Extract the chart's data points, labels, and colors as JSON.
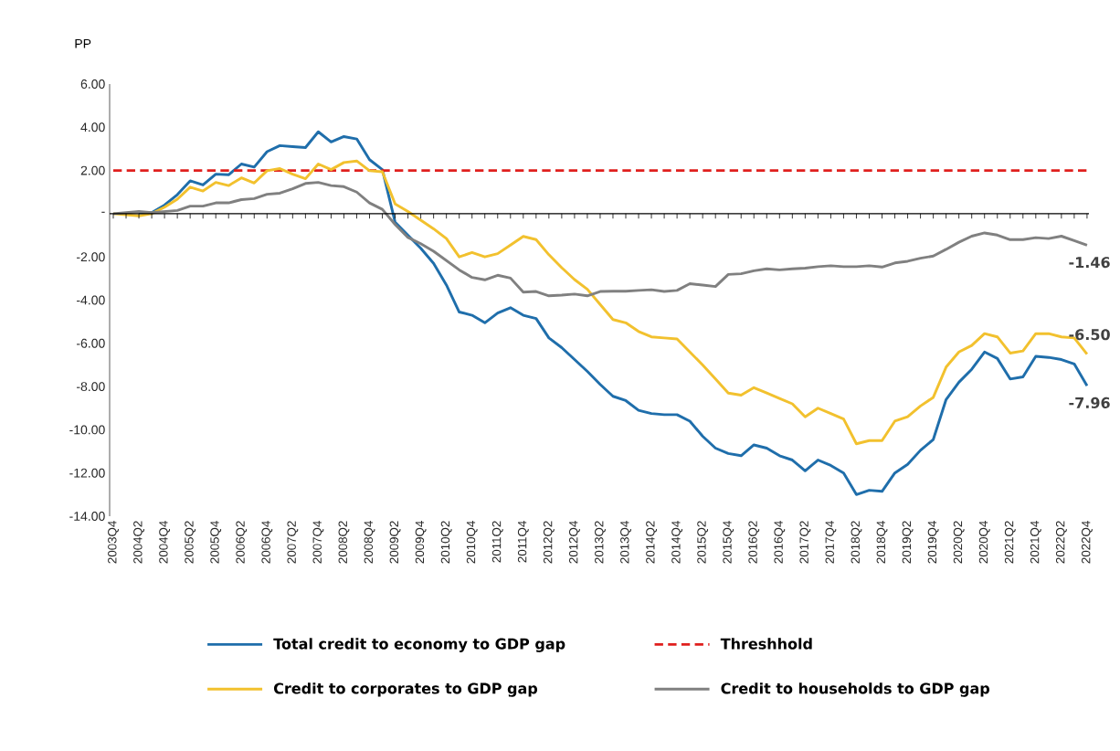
{
  "chart_data": {
    "type": "line",
    "ylabel": "PP",
    "categories": [
      "2003Q4",
      null,
      "2004Q2",
      null,
      "2004Q4",
      null,
      "2005Q2",
      null,
      "2005Q4",
      null,
      "2006Q2",
      null,
      "2006Q4",
      null,
      "2007Q2",
      null,
      "2007Q4",
      null,
      "2008Q2",
      null,
      "2008Q4",
      null,
      "2009Q2",
      null,
      "2009Q4",
      null,
      "2010Q2",
      null,
      "2010Q4",
      null,
      "2011Q2",
      null,
      "2011Q4",
      null,
      "2012Q2",
      null,
      "2012Q4",
      null,
      "2013Q2",
      null,
      "2013Q4",
      null,
      "2014Q2",
      null,
      "2014Q4",
      null,
      "2015Q2",
      null,
      "2015Q4",
      null,
      "2016Q2",
      null,
      "2016Q4",
      null,
      "2017Q2",
      null,
      "2017Q4",
      null,
      "2018Q2",
      null,
      "2018Q4",
      null,
      "2019Q2",
      null,
      "2019Q4",
      null,
      "2020Q2",
      null,
      "2020Q4",
      null,
      "2021Q2",
      null,
      "2021Q4",
      null,
      "2022Q2",
      null,
      "2022Q4"
    ],
    "series": [
      {
        "name": "Total credit to economy to GDP gap",
        "color": "#1f6eab",
        "values": [
          null,
          null,
          0.05,
          0.05,
          0.4,
          0.88,
          1.52,
          1.33,
          1.83,
          1.8,
          2.3,
          2.16,
          2.87,
          3.15,
          3.1,
          3.06,
          3.79,
          3.32,
          3.57,
          3.46,
          2.5,
          2.04,
          -0.4,
          -1.0,
          -1.6,
          -2.3,
          -3.3,
          -4.55,
          -4.7,
          -5.05,
          -4.6,
          -4.35,
          -4.7,
          -4.85,
          -5.75,
          -6.2,
          -6.75,
          -7.3,
          -7.9,
          -8.45,
          -8.65,
          -9.1,
          -9.25,
          -9.3,
          -9.3,
          -9.6,
          -10.3,
          -10.85,
          -11.1,
          -11.2,
          -10.7,
          -10.85,
          -11.2,
          -11.4,
          -11.9,
          -11.4,
          -11.65,
          -12.0,
          -13.0,
          -12.8,
          -12.85,
          -12.0,
          -11.6,
          -10.95,
          -10.45,
          -8.6,
          -7.8,
          -7.2,
          -6.4,
          -6.7,
          -7.65,
          -7.55,
          -6.6,
          -6.65,
          -6.75,
          -6.95,
          -7.96
        ],
        "value_labels": [
          null,
          null,
          null,
          null,
          null,
          null,
          null,
          null,
          null,
          null,
          null,
          null,
          null,
          null,
          null,
          null,
          null,
          null,
          null,
          null,
          null,
          null,
          null,
          null,
          null,
          null,
          null,
          null,
          null,
          null,
          null,
          null,
          null,
          null,
          null,
          null,
          null,
          null,
          null,
          null,
          null,
          null,
          null,
          null,
          null,
          null,
          null,
          null,
          null,
          null,
          null,
          null,
          null,
          null,
          null,
          null,
          null,
          null,
          null,
          null,
          null,
          null,
          null,
          null,
          null,
          null,
          null,
          null,
          null,
          null,
          null,
          null,
          null,
          null,
          null,
          null,
          "-7.96"
        ]
      },
      {
        "name": "Credit to corporates to GDP gap",
        "color": "#f2c12e",
        "values": [
          0,
          -0.05,
          -0.1,
          0,
          0.3,
          0.67,
          1.23,
          1.05,
          1.45,
          1.3,
          1.66,
          1.42,
          1.99,
          2.09,
          1.83,
          1.62,
          2.3,
          2.04,
          2.37,
          2.44,
          1.99,
          1.94,
          0.45,
          0.1,
          -0.3,
          -0.7,
          -1.15,
          -2.0,
          -1.8,
          -2.0,
          -1.85,
          -1.45,
          -1.05,
          -1.2,
          -1.9,
          -2.5,
          -3.05,
          -3.5,
          -4.2,
          -4.9,
          -5.05,
          -5.45,
          -5.7,
          -5.75,
          -5.8,
          -6.4,
          -7.0,
          -7.65,
          -8.3,
          -8.4,
          -8.05,
          -8.3,
          -8.55,
          -8.8,
          -9.4,
          -9.0,
          -9.25,
          -9.5,
          -10.65,
          -10.5,
          -10.5,
          -9.6,
          -9.4,
          -8.9,
          -8.5,
          -7.1,
          -6.4,
          -6.1,
          -5.55,
          -5.7,
          -6.45,
          -6.35,
          -5.55,
          -5.55,
          -5.7,
          -5.75,
          -6.5
        ],
        "value_labels": [
          null,
          null,
          null,
          null,
          null,
          null,
          null,
          null,
          null,
          null,
          null,
          null,
          null,
          null,
          null,
          null,
          null,
          null,
          null,
          null,
          null,
          null,
          null,
          null,
          null,
          null,
          null,
          null,
          null,
          null,
          null,
          null,
          null,
          null,
          null,
          null,
          null,
          null,
          null,
          null,
          null,
          null,
          null,
          null,
          null,
          null,
          null,
          null,
          null,
          null,
          null,
          null,
          null,
          null,
          null,
          null,
          null,
          null,
          null,
          null,
          null,
          null,
          null,
          null,
          null,
          null,
          null,
          null,
          null,
          null,
          null,
          null,
          null,
          null,
          null,
          null,
          "-6.50"
        ]
      },
      {
        "name": "Credit to households to GDP gap",
        "color": "#808080",
        "values": [
          0,
          0.05,
          0.1,
          0.05,
          0.1,
          0.15,
          0.35,
          0.35,
          0.5,
          0.5,
          0.65,
          0.7,
          0.9,
          0.95,
          1.15,
          1.4,
          1.45,
          1.3,
          1.25,
          1.0,
          0.5,
          0.2,
          -0.5,
          -1.1,
          -1.39,
          -1.74,
          -2.17,
          -2.6,
          -2.95,
          -3.06,
          -2.85,
          -2.98,
          -3.63,
          -3.6,
          -3.8,
          -3.77,
          -3.72,
          -3.8,
          -3.6,
          -3.59,
          -3.59,
          -3.55,
          -3.52,
          -3.6,
          -3.55,
          -3.24,
          -3.3,
          -3.37,
          -2.81,
          -2.78,
          -2.64,
          -2.55,
          -2.6,
          -2.55,
          -2.52,
          -2.45,
          -2.41,
          -2.45,
          -2.45,
          -2.41,
          -2.47,
          -2.28,
          -2.2,
          -2.06,
          -1.96,
          -1.65,
          -1.32,
          -1.04,
          -0.89,
          -0.99,
          -1.2,
          -1.2,
          -1.11,
          -1.15,
          -1.04,
          -1.25,
          -1.46
        ],
        "value_labels": [
          null,
          null,
          null,
          null,
          null,
          null,
          null,
          null,
          null,
          null,
          null,
          null,
          null,
          null,
          null,
          null,
          null,
          null,
          null,
          null,
          null,
          null,
          null,
          null,
          null,
          null,
          null,
          null,
          null,
          null,
          null,
          null,
          null,
          null,
          null,
          null,
          null,
          null,
          null,
          null,
          null,
          null,
          null,
          null,
          null,
          null,
          null,
          null,
          null,
          null,
          null,
          null,
          null,
          null,
          null,
          null,
          null,
          null,
          null,
          null,
          null,
          null,
          null,
          null,
          null,
          null,
          null,
          null,
          null,
          null,
          null,
          null,
          null,
          null,
          null,
          null,
          "-1.46"
        ]
      }
    ],
    "ref_lines": [
      {
        "axis": "y",
        "value": 2,
        "label": "Threshhold",
        "color": "#e0201e",
        "line_style": "dashed"
      }
    ],
    "ylim": [
      -14,
      6
    ],
    "yticks": [
      {
        "value": -14,
        "label": "-14.00"
      },
      {
        "value": -12,
        "label": "-12.00"
      },
      {
        "value": -10,
        "label": "-10.00"
      },
      {
        "value": -8,
        "label": "-8.00"
      },
      {
        "value": -6,
        "label": "-6.00"
      },
      {
        "value": -4,
        "label": "-4.00"
      },
      {
        "value": -2,
        "label": "-2.00"
      },
      {
        "value": 0,
        "label": "-"
      },
      {
        "value": 2,
        "label": "2.00"
      },
      {
        "value": 4,
        "label": "4.00"
      },
      {
        "value": 6,
        "label": "6.00"
      }
    ],
    "legend": "bottom"
  }
}
